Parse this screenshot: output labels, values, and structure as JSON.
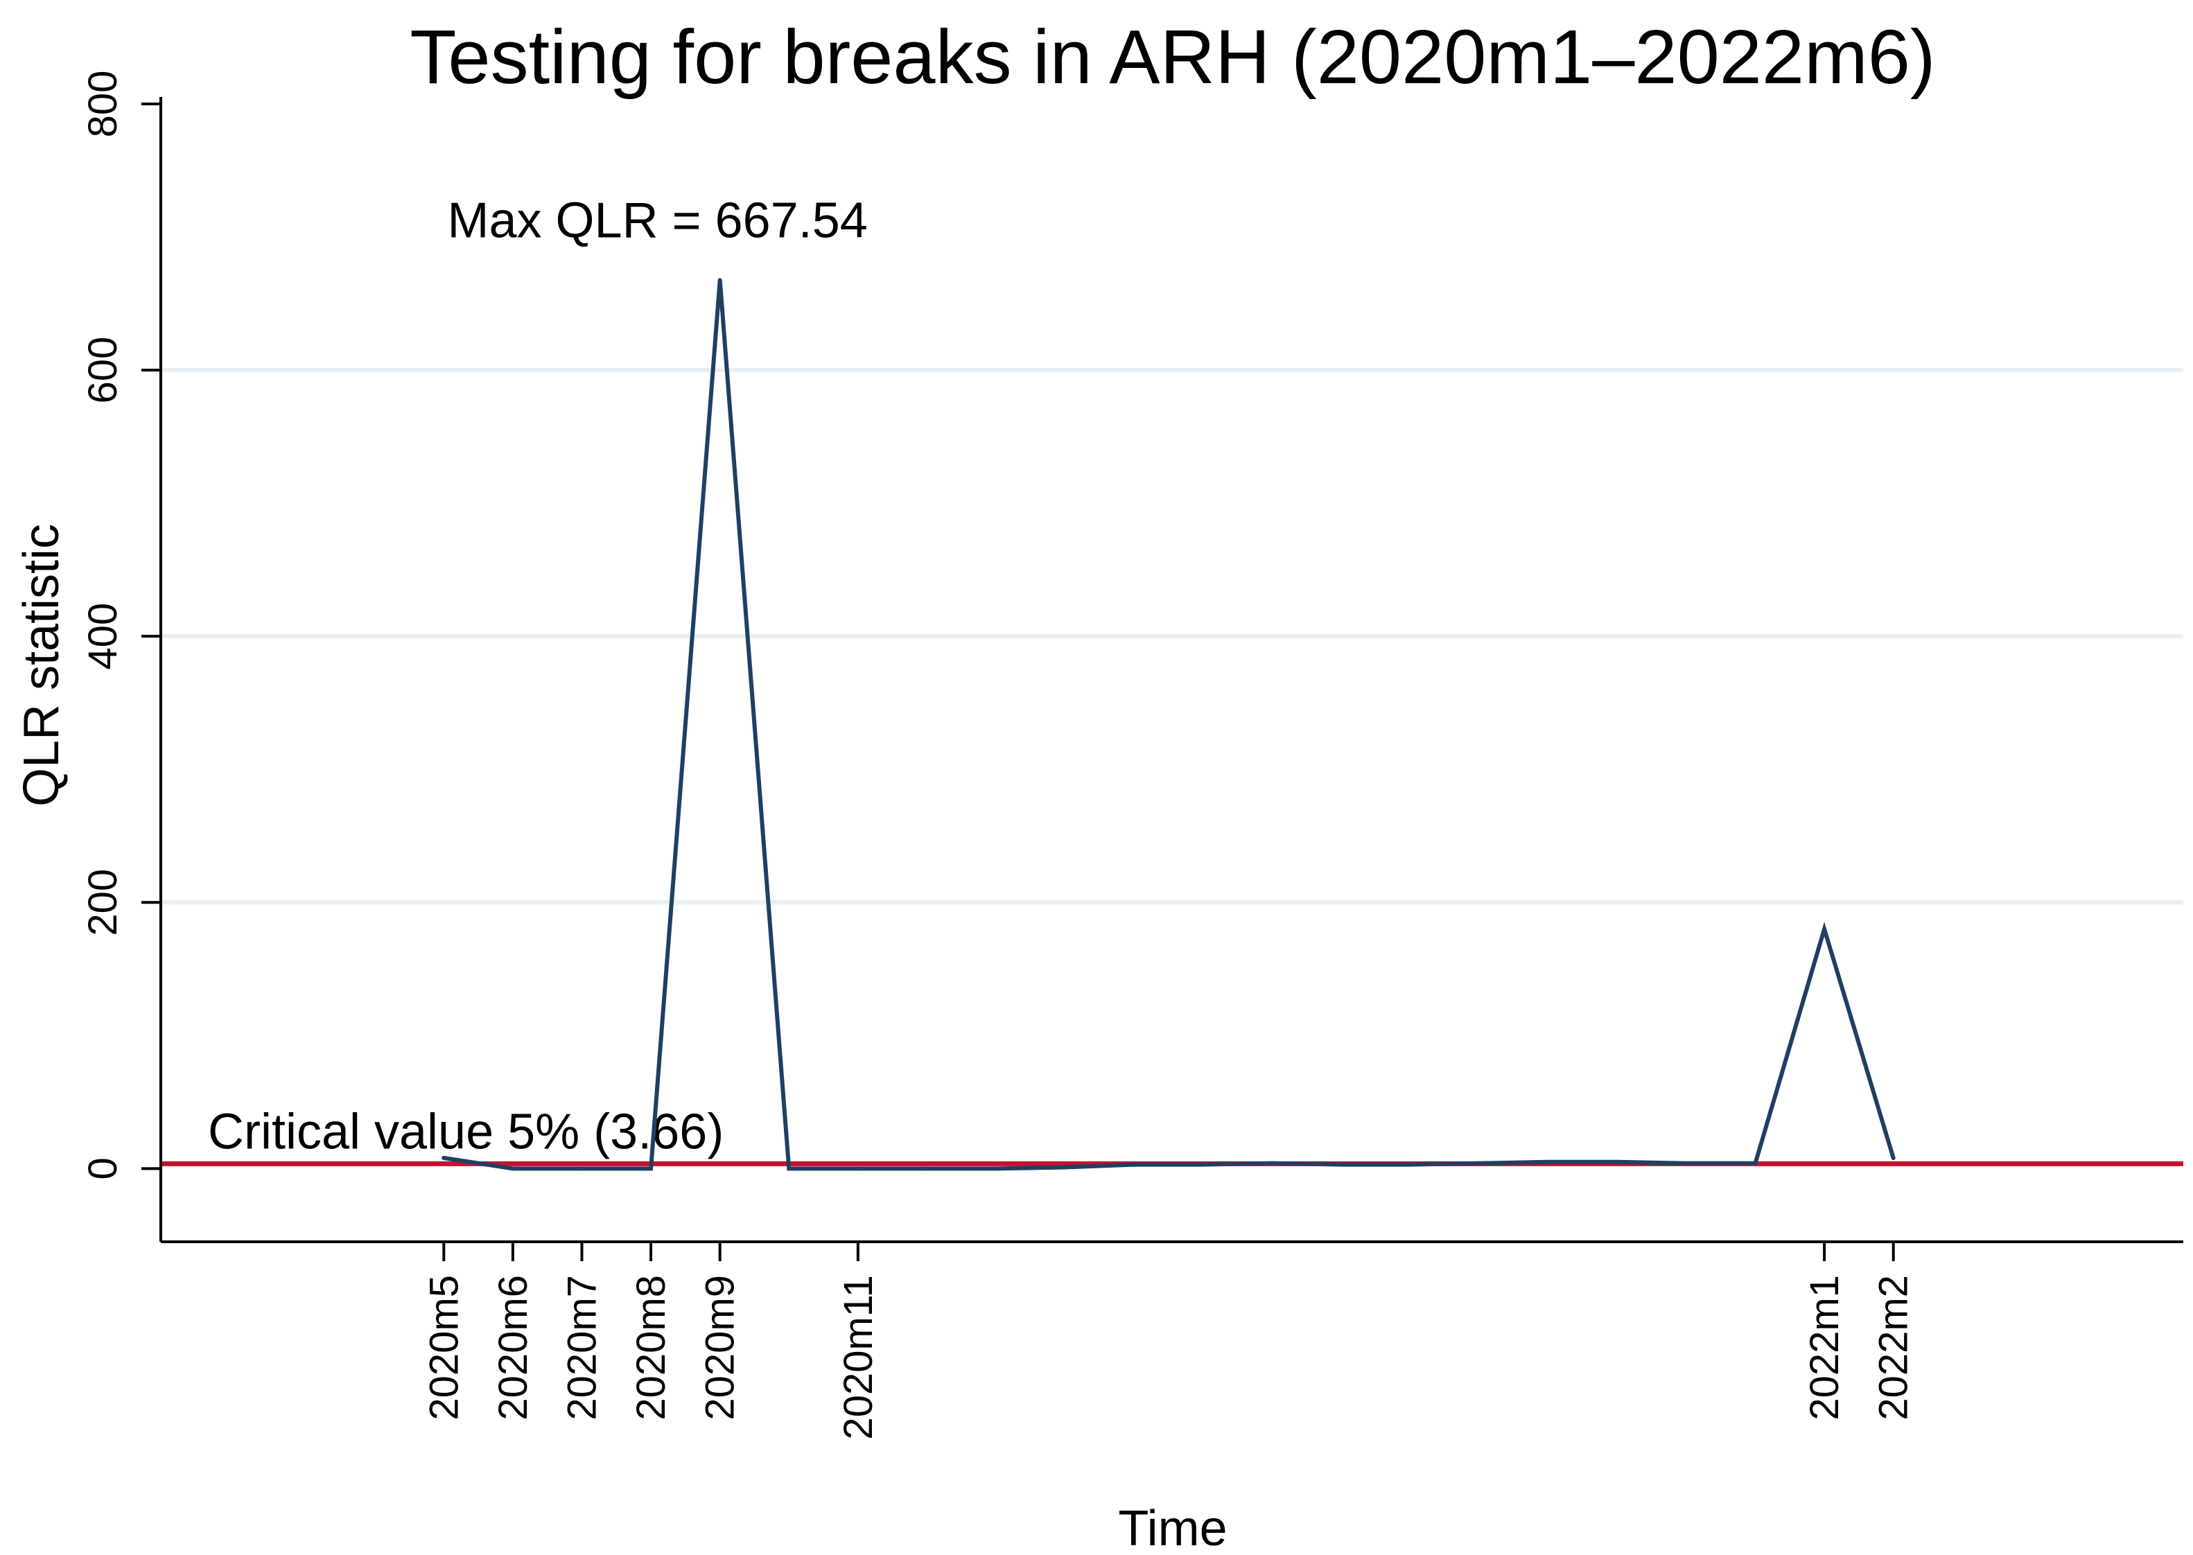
{
  "chart_data": {
    "type": "line",
    "title": "Testing for breaks in ARH (2020m1–2022m6)",
    "xlabel": "Time",
    "ylabel": "QLR statistic",
    "ylim": [
      -55,
      800
    ],
    "yticks": [
      0,
      200,
      400,
      600,
      800
    ],
    "grid": "horizontal",
    "x_tick_labels": [
      "2020m5",
      "2020m6",
      "2020m7",
      "2020m8",
      "2020m9",
      "2020m11",
      "2022m1",
      "2022m2"
    ],
    "series": [
      {
        "color": "#1f3f63",
        "points": [
          {
            "x": "2020m5",
            "y": 8
          },
          {
            "x": "2020m6",
            "y": 0
          },
          {
            "x": "2020m7",
            "y": 0
          },
          {
            "x": "2020m8",
            "y": 0
          },
          {
            "x": "2020m9",
            "y": 667.54
          },
          {
            "x": "2020m10",
            "y": 0
          },
          {
            "x": "2020m11",
            "y": 0
          },
          {
            "x": "2020m12",
            "y": 0
          },
          {
            "x": "2021m1",
            "y": 0
          },
          {
            "x": "2021m2",
            "y": 1
          },
          {
            "x": "2021m3",
            "y": 3
          },
          {
            "x": "2021m4",
            "y": 3
          },
          {
            "x": "2021m5",
            "y": 4
          },
          {
            "x": "2021m6",
            "y": 3
          },
          {
            "x": "2021m7",
            "y": 3
          },
          {
            "x": "2021m8",
            "y": 4
          },
          {
            "x": "2021m9",
            "y": 5
          },
          {
            "x": "2021m10",
            "y": 5
          },
          {
            "x": "2021m11",
            "y": 4
          },
          {
            "x": "2021m12",
            "y": 4
          },
          {
            "x": "2022m1",
            "y": 180
          },
          {
            "x": "2022m2",
            "y": 8
          }
        ]
      }
    ],
    "reference_line": {
      "y": 3.66,
      "color": "#c8102e",
      "label": "Critical value 5% (3.66)"
    },
    "annotations": [
      {
        "text": "Max QLR = 667.54",
        "x": "2020m9",
        "y": 667.54
      }
    ],
    "colors": {
      "line": "#1f3f63",
      "grid": "#e8eef2",
      "critical": "#c8102e",
      "axis": "#000000"
    }
  }
}
